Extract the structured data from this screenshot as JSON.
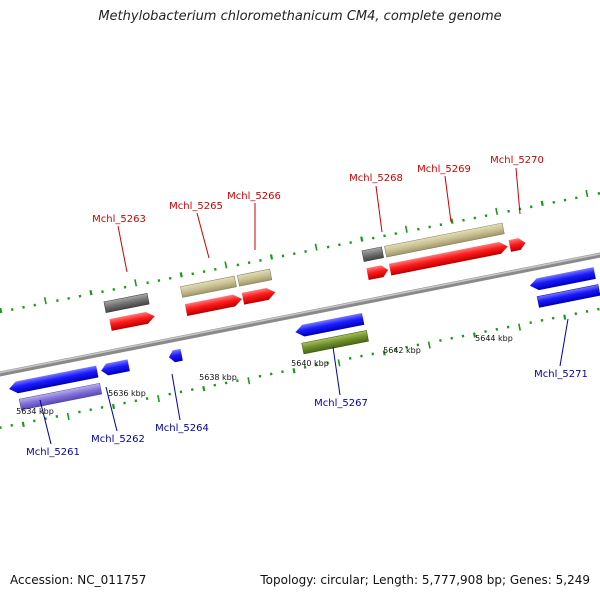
{
  "header": {
    "title": "Methylobacterium chloromethanicum CM4, complete genome"
  },
  "footer": {
    "accession": "Accession: NC_011757",
    "stats": "Topology: circular; Length: 5,777,908 bp; Genes: 5,249"
  },
  "legend_colors": {
    "backbone": "#8a8a8a",
    "forward_cds": "#ff1a1a",
    "reverse_cds": "#1a1aff",
    "forward_rna": "#c8c092",
    "forward_other": "#707070",
    "reverse_rna": "#8070d8",
    "reverse_other": "#6f8f2a",
    "forward_label": "#cc0000",
    "reverse_label": "#0000aa",
    "ticks": "#1a9a1a"
  },
  "kbp_labels": [
    "5634 kbp",
    "5636 kbp",
    "5638 kbp",
    "5640 kbp",
    "5642 kbp",
    "5644 kbp"
  ],
  "genes_forward": [
    {
      "name": "Mchl_5263"
    },
    {
      "name": "Mchl_5265"
    },
    {
      "name": "Mchl_5266"
    },
    {
      "name": "Mchl_5268"
    },
    {
      "name": "Mchl_5269"
    },
    {
      "name": "Mchl_5270"
    }
  ],
  "genes_reverse": [
    {
      "name": "Mchl_5261"
    },
    {
      "name": "Mchl_5262"
    },
    {
      "name": "Mchl_5264"
    },
    {
      "name": "Mchl_5267"
    },
    {
      "name": "Mchl_5271"
    }
  ]
}
